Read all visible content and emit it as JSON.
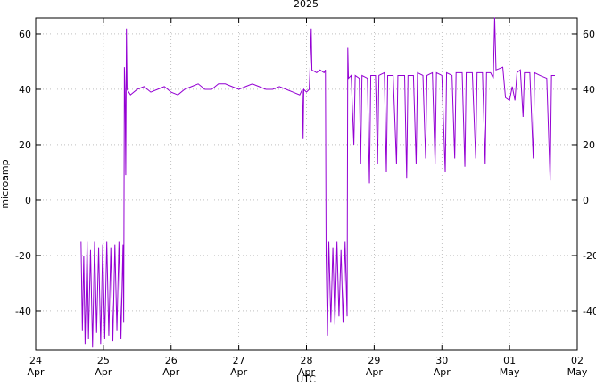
{
  "chart_data": {
    "type": "line",
    "title": "2025",
    "xlabel": "UTC",
    "ylabel": "microamp",
    "x": [
      0.67,
      0.69,
      0.71,
      0.73,
      0.76,
      0.78,
      0.81,
      0.84,
      0.87,
      0.9,
      0.93,
      0.96,
      0.99,
      1.02,
      1.05,
      1.08,
      1.11,
      1.14,
      1.17,
      1.2,
      1.23,
      1.26,
      1.29,
      1.3,
      1.31,
      1.32,
      1.33,
      1.34,
      1.35,
      1.4,
      1.5,
      1.6,
      1.7,
      1.8,
      1.9,
      2.0,
      2.1,
      2.2,
      2.3,
      2.4,
      2.5,
      2.6,
      2.7,
      2.8,
      2.9,
      3.0,
      3.1,
      3.2,
      3.3,
      3.4,
      3.5,
      3.6,
      3.7,
      3.8,
      3.9,
      3.94,
      3.95,
      3.96,
      4.0,
      4.04,
      4.05,
      4.07,
      4.08,
      4.15,
      4.2,
      4.26,
      4.28,
      4.29,
      4.31,
      4.33,
      4.36,
      4.39,
      4.42,
      4.45,
      4.48,
      4.51,
      4.54,
      4.57,
      4.6,
      4.61,
      4.62,
      4.66,
      4.7,
      4.72,
      4.78,
      4.8,
      4.82,
      4.9,
      4.93,
      4.95,
      5.02,
      5.05,
      5.07,
      5.15,
      5.18,
      5.2,
      5.28,
      5.33,
      5.35,
      5.45,
      5.48,
      5.5,
      5.58,
      5.62,
      5.64,
      5.72,
      5.76,
      5.78,
      5.86,
      5.9,
      5.92,
      6.0,
      6.05,
      6.07,
      6.15,
      6.19,
      6.21,
      6.3,
      6.34,
      6.36,
      6.45,
      6.5,
      6.52,
      6.6,
      6.64,
      6.66,
      6.72,
      6.76,
      6.78,
      6.8,
      6.9,
      6.94,
      7.0,
      7.04,
      7.08,
      7.11,
      7.16,
      7.2,
      7.22,
      7.3,
      7.35,
      7.37,
      7.45,
      7.55,
      7.6,
      7.62,
      7.67
    ],
    "series": [
      {
        "name": "microamp",
        "color": "#9400d3",
        "values": [
          -15,
          -47,
          -20,
          -52,
          -15,
          -50,
          -18,
          -53,
          -15,
          -48,
          -17,
          -52,
          -16,
          -50,
          -15,
          -49,
          -17,
          -51,
          -16,
          -47,
          -15,
          -50,
          -16,
          -44,
          48,
          39,
          9,
          62,
          40,
          38,
          40,
          41,
          39,
          40,
          41,
          39,
          38,
          40,
          41,
          42,
          40,
          40,
          42,
          42,
          41,
          40,
          41,
          42,
          41,
          40,
          40,
          41,
          40,
          39,
          38,
          40,
          22,
          40,
          39,
          40,
          46,
          62,
          47,
          46,
          47,
          46,
          47,
          -20,
          -49,
          -15,
          -44,
          -17,
          -45,
          -15,
          -42,
          -18,
          -44,
          -15,
          -42,
          55,
          44,
          45,
          20,
          45,
          44,
          13,
          45,
          44,
          6,
          45,
          45,
          13,
          45,
          46,
          10,
          45,
          45,
          13,
          45,
          45,
          8,
          45,
          45,
          13,
          46,
          45,
          15,
          45,
          46,
          13,
          46,
          45,
          10,
          46,
          45,
          15,
          46,
          46,
          12,
          46,
          46,
          15,
          46,
          46,
          13,
          46,
          46,
          44,
          66,
          47,
          48,
          37,
          36,
          41,
          36,
          46,
          47,
          30,
          46,
          46,
          15,
          46,
          45,
          44,
          7,
          45,
          45
        ]
      }
    ],
    "xlim": [
      0,
      8
    ],
    "xticks": [
      {
        "value": 0,
        "label": "24\nApr"
      },
      {
        "value": 1,
        "label": "25\nApr"
      },
      {
        "value": 2,
        "label": "26\nApr"
      },
      {
        "value": 3,
        "label": "27\nApr"
      },
      {
        "value": 4,
        "label": "28\nApr"
      },
      {
        "value": 5,
        "label": "29\nApr"
      },
      {
        "value": 6,
        "label": "30\nApr"
      },
      {
        "value": 7,
        "label": "01\nMay"
      },
      {
        "value": 8,
        "label": "02\nMay"
      }
    ],
    "ylim": [
      -54.2,
      65.8
    ],
    "yticks": [
      -40,
      -20,
      0,
      20,
      40,
      60
    ],
    "grid": true
  }
}
